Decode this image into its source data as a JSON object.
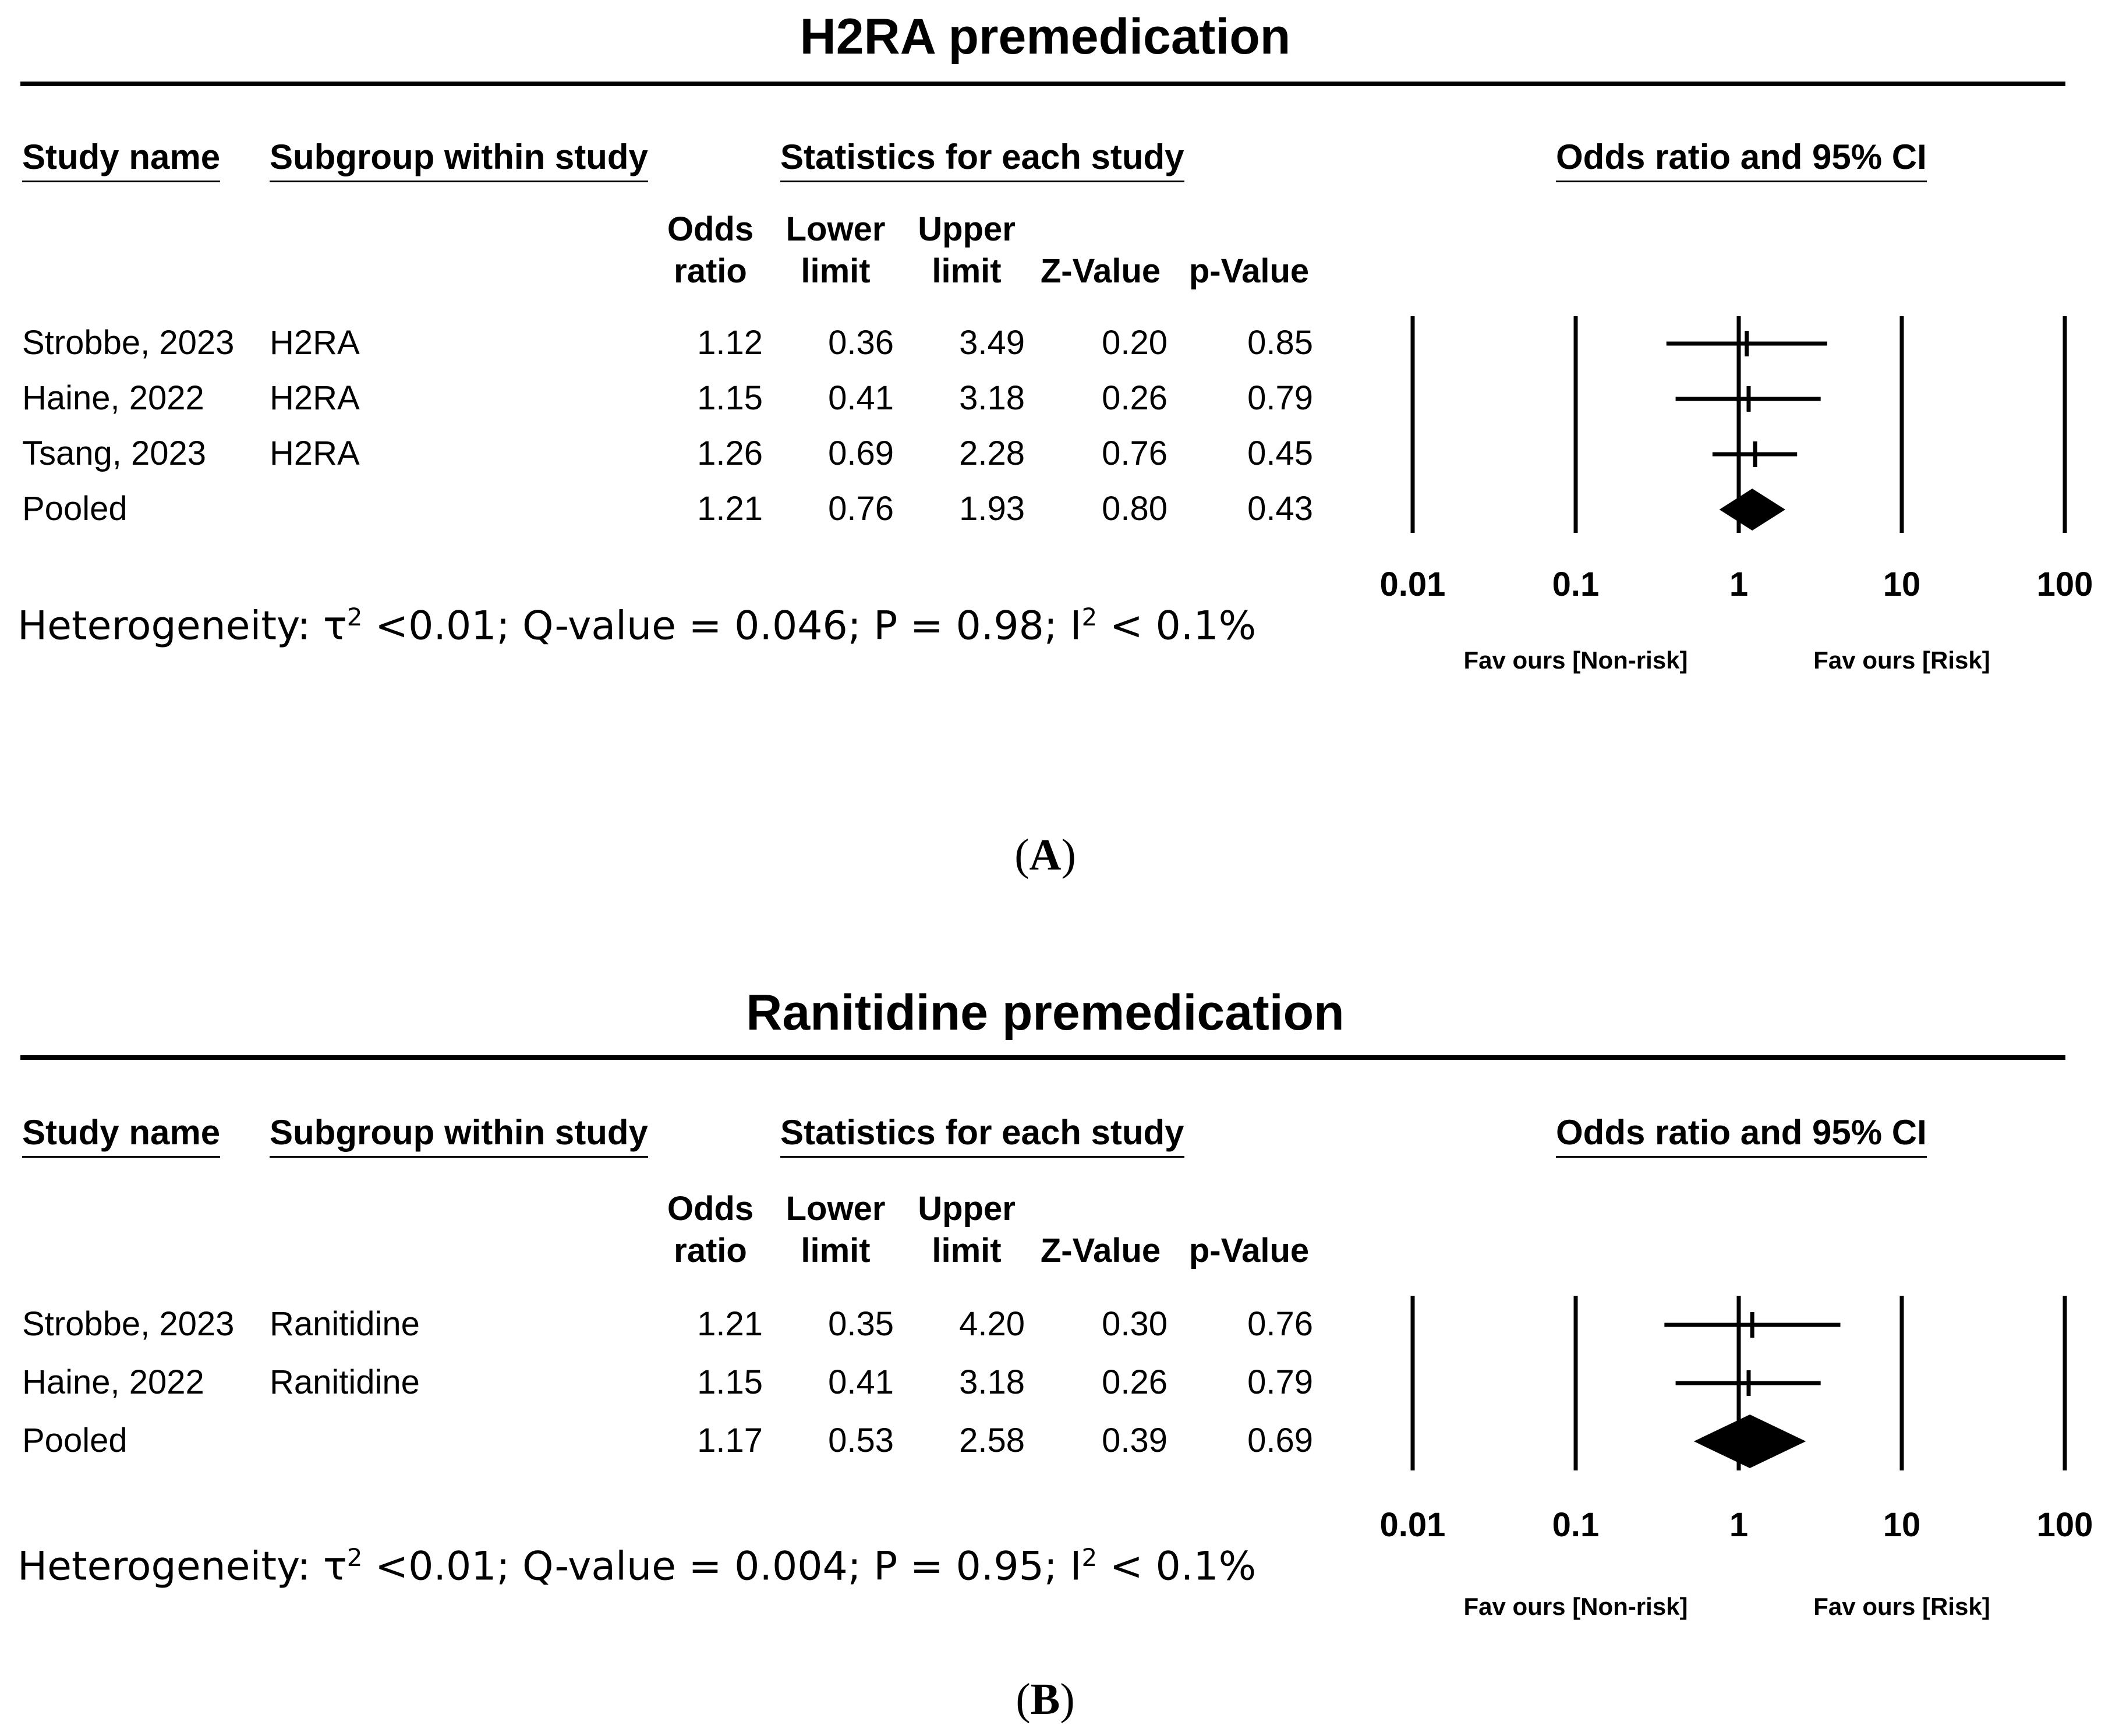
{
  "panels": [
    {
      "title": "H2RA premedication",
      "headers": {
        "study_name": "Study name",
        "subgroup": "Subgroup within study",
        "statistics": "Statistics for each study",
        "plot": "Odds ratio and 95% CI"
      },
      "columns": {
        "or_1": "Odds",
        "or_2": "ratio",
        "lower_1": "Lower",
        "lower_2": "limit",
        "upper_1": "Upper",
        "upper_2": "limit",
        "z": "Z-Value",
        "p": "p-Value"
      },
      "rows": [
        {
          "study": "Strobbe, 2023",
          "subgroup": "H2RA",
          "or": "1.12",
          "lower": "0.36",
          "upper": "3.49",
          "z": "0.20",
          "p": "0.85"
        },
        {
          "study": "Haine, 2022",
          "subgroup": "H2RA",
          "or": "1.15",
          "lower": "0.41",
          "upper": "3.18",
          "z": "0.26",
          "p": "0.79"
        },
        {
          "study": "Tsang, 2023",
          "subgroup": "H2RA",
          "or": "1.26",
          "lower": "0.69",
          "upper": "2.28",
          "z": "0.76",
          "p": "0.45"
        },
        {
          "study": "Pooled",
          "subgroup": "",
          "or": "1.21",
          "lower": "0.76",
          "upper": "1.93",
          "z": "0.80",
          "p": "0.43"
        }
      ],
      "heterogeneity": {
        "prefix": "Heterogeneity: τ",
        "sup1": "2",
        "middle": " <0.01; Q-value = 0.046; P = 0.98; I",
        "sup2": "2",
        "suffix": " < 0.1%"
      },
      "axis_ticks": [
        "0.01",
        "0.1",
        "1",
        "10",
        "100"
      ],
      "favours_left": "Fav ours [Non-risk]",
      "favours_right": "Fav ours [Risk]",
      "label": "A"
    },
    {
      "title": "Ranitidine premedication",
      "headers": {
        "study_name": "Study name",
        "subgroup": "Subgroup within study",
        "statistics": "Statistics for each study",
        "plot": "Odds ratio and 95% CI"
      },
      "columns": {
        "or_1": "Odds",
        "or_2": "ratio",
        "lower_1": "Lower",
        "lower_2": "limit",
        "upper_1": "Upper",
        "upper_2": "limit",
        "z": "Z-Value",
        "p": "p-Value"
      },
      "rows": [
        {
          "study": "Strobbe, 2023",
          "subgroup": "Ranitidine",
          "or": "1.21",
          "lower": "0.35",
          "upper": "4.20",
          "z": "0.30",
          "p": "0.76"
        },
        {
          "study": "Haine, 2022",
          "subgroup": "Ranitidine",
          "or": "1.15",
          "lower": "0.41",
          "upper": "3.18",
          "z": "0.26",
          "p": "0.79"
        },
        {
          "study": "Pooled",
          "subgroup": "",
          "or": "1.17",
          "lower": "0.53",
          "upper": "2.58",
          "z": "0.39",
          "p": "0.69"
        }
      ],
      "heterogeneity": {
        "prefix": "Heterogeneity: τ",
        "sup1": "2",
        "middle": " <0.01; Q-value = 0.004; P = 0.95; I",
        "sup2": "2",
        "suffix": " < 0.1%"
      },
      "axis_ticks": [
        "0.01",
        "0.1",
        "1",
        "10",
        "100"
      ],
      "favours_left": "Fav ours [Non-risk]",
      "favours_right": "Fav ours [Risk]",
      "label": "B"
    }
  ],
  "chart_data": [
    {
      "type": "forest",
      "title": "H2RA premedication",
      "xscale": "log",
      "xlim": [
        0.01,
        100
      ],
      "xticks": [
        0.01,
        0.1,
        1,
        10,
        100
      ],
      "studies": [
        {
          "name": "Strobbe, 2023",
          "or": 1.12,
          "lower": 0.36,
          "upper": 3.49
        },
        {
          "name": "Haine, 2022",
          "or": 1.15,
          "lower": 0.41,
          "upper": 3.18
        },
        {
          "name": "Tsang, 2023",
          "or": 1.26,
          "lower": 0.69,
          "upper": 2.28
        }
      ],
      "pooled": {
        "or": 1.21,
        "lower": 0.76,
        "upper": 1.93
      }
    },
    {
      "type": "forest",
      "title": "Ranitidine premedication",
      "xscale": "log",
      "xlim": [
        0.01,
        100
      ],
      "xticks": [
        0.01,
        0.1,
        1,
        10,
        100
      ],
      "studies": [
        {
          "name": "Strobbe, 2023",
          "or": 1.21,
          "lower": 0.35,
          "upper": 4.2
        },
        {
          "name": "Haine, 2022",
          "or": 1.15,
          "lower": 0.41,
          "upper": 3.18
        }
      ],
      "pooled": {
        "or": 1.17,
        "lower": 0.53,
        "upper": 2.58
      }
    }
  ]
}
